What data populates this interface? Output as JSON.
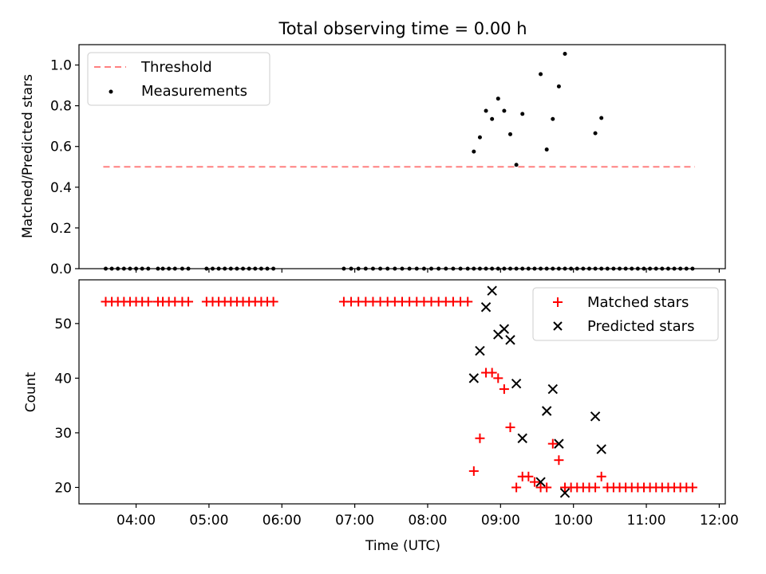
{
  "chart_data": [
    {
      "type": "scatter",
      "title": "Total observing time = 0.00 h",
      "ylabel": "Matched/Predicted stars",
      "ylim": [
        0,
        1.1
      ],
      "yticks": [
        "0.0",
        "0.2",
        "0.4",
        "0.6",
        "0.8",
        "1.0"
      ],
      "ytick_values": [
        0,
        0.2,
        0.4,
        0.6,
        0.8,
        1.0
      ],
      "legend_position": "top-left",
      "threshold": {
        "name": "Threshold",
        "value": 0.5,
        "x_start": "03:33",
        "x_end": "11:40",
        "color": "#ff8080"
      },
      "measurements": {
        "name": "Measurements",
        "color": "#000000",
        "x": [
          "03:35",
          "03:40",
          "03:45",
          "03:50",
          "03:55",
          "04:00",
          "04:05",
          "04:10",
          "04:18",
          "04:22",
          "04:27",
          "04:32",
          "04:38",
          "04:43",
          "04:58",
          "05:03",
          "05:08",
          "05:13",
          "05:18",
          "05:23",
          "05:28",
          "05:33",
          "05:38",
          "05:43",
          "05:48",
          "05:53",
          "06:51",
          "06:57",
          "07:03",
          "07:09",
          "07:15",
          "07:21",
          "07:27",
          "07:33",
          "07:39",
          "07:45",
          "07:51",
          "07:57",
          "08:03",
          "08:09",
          "08:15",
          "08:21",
          "08:27",
          "08:33",
          "08:38",
          "08:43",
          "08:48",
          "08:53",
          "08:58",
          "09:03",
          "09:08",
          "09:13",
          "09:18",
          "09:23",
          "09:28",
          "09:33",
          "09:38",
          "09:43",
          "09:48",
          "09:53",
          "09:58",
          "10:03",
          "10:08",
          "10:13",
          "10:18",
          "10:23",
          "10:28",
          "10:33",
          "10:38",
          "10:43",
          "10:48",
          "10:53",
          "10:58",
          "11:03",
          "11:08",
          "11:13",
          "11:18",
          "11:23",
          "11:28",
          "11:33",
          "11:38"
        ],
        "y": [
          0,
          0,
          0,
          0,
          0,
          0,
          0,
          0,
          0,
          0,
          0,
          0,
          0,
          0,
          0,
          0,
          0,
          0,
          0,
          0,
          0,
          0,
          0,
          0,
          0,
          0,
          0,
          0,
          0,
          0,
          0,
          0,
          0,
          0,
          0,
          0,
          0,
          0,
          0,
          0,
          0,
          0,
          0,
          0,
          0,
          0,
          0,
          0,
          0,
          0,
          0,
          0,
          0,
          0,
          0,
          0,
          0,
          0,
          0,
          0,
          0,
          0,
          0,
          0,
          0,
          0,
          0,
          0,
          0,
          0,
          0,
          0,
          0,
          0,
          0,
          0,
          0,
          0,
          0,
          0,
          0
        ]
      },
      "measurements_nonzero": {
        "x": [
          "08:38",
          "08:43",
          "08:48",
          "08:53",
          "08:58",
          "09:03",
          "09:08",
          "09:13",
          "09:18",
          "09:33",
          "09:38",
          "09:43",
          "09:48",
          "09:53",
          "10:18",
          "10:23"
        ],
        "y": [
          0.575,
          0.645,
          0.775,
          0.735,
          0.835,
          0.775,
          0.66,
          0.51,
          0.76,
          0.955,
          0.585,
          0.735,
          0.895,
          1.055,
          0.665,
          0.74
        ]
      }
    },
    {
      "type": "scatter",
      "ylabel": "Count",
      "xlabel": "Time (UTC)",
      "ylim": [
        17,
        58
      ],
      "yticks": [
        "20",
        "30",
        "40",
        "50"
      ],
      "ytick_values": [
        20,
        30,
        40,
        50
      ],
      "xticks": [
        "04:00",
        "05:00",
        "06:00",
        "07:00",
        "08:00",
        "09:00",
        "10:00",
        "11:00",
        "12:00"
      ],
      "xlim": [
        "03:13",
        "12:05"
      ],
      "legend_position": "top-right",
      "series": [
        {
          "name": "Matched stars",
          "marker": "plus",
          "color": "#ff0000",
          "x": [
            "03:35",
            "03:40",
            "03:45",
            "03:50",
            "03:55",
            "04:00",
            "04:05",
            "04:10",
            "04:18",
            "04:22",
            "04:27",
            "04:32",
            "04:38",
            "04:43",
            "04:58",
            "05:03",
            "05:08",
            "05:13",
            "05:18",
            "05:23",
            "05:28",
            "05:33",
            "05:38",
            "05:43",
            "05:48",
            "05:53",
            "06:51",
            "06:57",
            "07:03",
            "07:09",
            "07:15",
            "07:21",
            "07:27",
            "07:33",
            "07:39",
            "07:45",
            "07:51",
            "07:57",
            "08:03",
            "08:09",
            "08:15",
            "08:21",
            "08:27",
            "08:33",
            "08:38",
            "08:43",
            "08:48",
            "08:53",
            "08:58",
            "09:03",
            "09:08",
            "09:13",
            "09:18",
            "09:23",
            "09:28",
            "09:33",
            "09:38",
            "09:43",
            "09:48",
            "09:53",
            "09:58",
            "10:03",
            "10:08",
            "10:13",
            "10:18",
            "10:23",
            "10:28",
            "10:33",
            "10:38",
            "10:43",
            "10:48",
            "10:53",
            "10:58",
            "11:03",
            "11:08",
            "11:13",
            "11:18",
            "11:23",
            "11:28",
            "11:33",
            "11:38"
          ],
          "y": [
            54,
            54,
            54,
            54,
            54,
            54,
            54,
            54,
            54,
            54,
            54,
            54,
            54,
            54,
            54,
            54,
            54,
            54,
            54,
            54,
            54,
            54,
            54,
            54,
            54,
            54,
            54,
            54,
            54,
            54,
            54,
            54,
            54,
            54,
            54,
            54,
            54,
            54,
            54,
            54,
            54,
            54,
            54,
            54,
            23,
            29,
            41,
            41,
            40,
            38,
            31,
            20,
            22,
            22,
            21,
            20,
            20,
            28,
            25,
            20,
            20,
            20,
            20,
            20,
            20,
            22,
            20,
            20,
            20,
            20,
            20,
            20,
            20,
            20,
            20,
            20,
            20,
            20,
            20,
            20,
            20
          ]
        },
        {
          "name": "Predicted stars",
          "marker": "x",
          "color": "#000000",
          "x": [
            "08:38",
            "08:43",
            "08:48",
            "08:53",
            "08:58",
            "09:03",
            "09:08",
            "09:13",
            "09:18",
            "09:33",
            "09:38",
            "09:43",
            "09:48",
            "09:53",
            "10:18",
            "10:23"
          ],
          "y": [
            40,
            45,
            53,
            56,
            48,
            49,
            47,
            39,
            29,
            21,
            34,
            38,
            28,
            19,
            33,
            27
          ]
        }
      ]
    }
  ]
}
